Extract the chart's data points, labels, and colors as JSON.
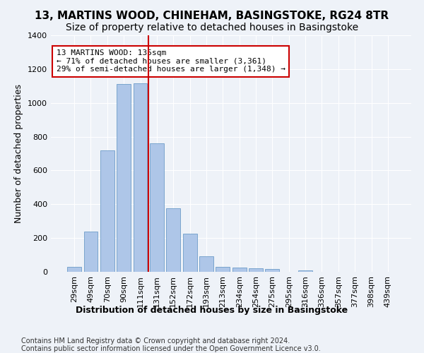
{
  "title": "13, MARTINS WOOD, CHINEHAM, BASINGSTOKE, RG24 8TR",
  "subtitle": "Size of property relative to detached houses in Basingstoke",
  "xlabel": "Distribution of detached houses by size in Basingstoke",
  "ylabel": "Number of detached properties",
  "bar_values": [
    30,
    240,
    720,
    1110,
    1115,
    760,
    375,
    225,
    90,
    30,
    25,
    20,
    15,
    0,
    10,
    0,
    0,
    0,
    0,
    0
  ],
  "bar_labels": [
    "29sqm",
    "49sqm",
    "70sqm",
    "90sqm",
    "111sqm",
    "131sqm",
    "152sqm",
    "172sqm",
    "193sqm",
    "213sqm",
    "234sqm",
    "254sqm",
    "275sqm",
    "295sqm",
    "316sqm",
    "336sqm",
    "357sqm",
    "377sqm",
    "398sqm",
    "439sqm"
  ],
  "bar_color": "#aec6e8",
  "bar_edge_color": "#5a8fc0",
  "annotation_text": "13 MARTINS WOOD: 135sqm\n← 71% of detached houses are smaller (3,361)\n29% of semi-detached houses are larger (1,348) →",
  "annotation_box_color": "#ffffff",
  "annotation_box_edge_color": "#cc0000",
  "vline_x": 4.5,
  "vline_color": "#cc0000",
  "ylim": [
    0,
    1400
  ],
  "yticks": [
    0,
    200,
    400,
    600,
    800,
    1000,
    1200,
    1400
  ],
  "footnote": "Contains HM Land Registry data © Crown copyright and database right 2024.\nContains public sector information licensed under the Open Government Licence v3.0.",
  "background_color": "#eef2f8",
  "grid_color": "#ffffff",
  "title_fontsize": 11,
  "subtitle_fontsize": 10,
  "label_fontsize": 9,
  "tick_fontsize": 8,
  "footnote_fontsize": 7
}
